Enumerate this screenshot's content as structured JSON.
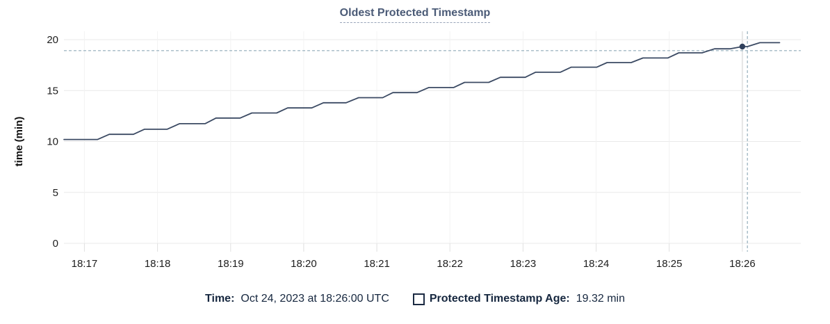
{
  "colors": {
    "line": "#3b4a63",
    "dot": "#30405c",
    "grid_h": "#e9e9e9",
    "grid_v": "#f2f2f2",
    "tick_mark": "#e0e0e0",
    "crosshair": "#a3b9c5",
    "hover_column": "#e6e6e6",
    "axis_text": "#1d1d1d",
    "title_text": "#4b5b77",
    "legend_text": "#16273f"
  },
  "chart_data": {
    "type": "line",
    "title": "Oldest Protected Timestamp",
    "xlabel": "",
    "ylabel": "time (min)",
    "ylim": [
      0,
      20
    ],
    "yticks": [
      0,
      5,
      10,
      15,
      20
    ],
    "xtick_labels": [
      "18:17",
      "18:18",
      "18:19",
      "18:20",
      "18:21",
      "18:22",
      "18:23",
      "18:24",
      "18:25",
      "18:26"
    ],
    "x_unit": "minutes after 18:17 UTC",
    "xlim": [
      -0.28,
      9.8
    ],
    "grid": true,
    "legend_position": "bottom",
    "series": [
      {
        "name": "Protected Timestamp Age",
        "points": [
          [
            -0.28,
            10.2
          ],
          [
            0.18,
            10.2
          ],
          [
            0.34,
            10.7
          ],
          [
            0.67,
            10.7
          ],
          [
            0.82,
            11.2
          ],
          [
            1.13,
            11.2
          ],
          [
            1.3,
            11.75
          ],
          [
            1.65,
            11.75
          ],
          [
            1.8,
            12.3
          ],
          [
            2.13,
            12.3
          ],
          [
            2.29,
            12.8
          ],
          [
            2.63,
            12.8
          ],
          [
            2.78,
            13.3
          ],
          [
            3.11,
            13.3
          ],
          [
            3.27,
            13.8
          ],
          [
            3.58,
            13.8
          ],
          [
            3.75,
            14.3
          ],
          [
            4.08,
            14.3
          ],
          [
            4.22,
            14.8
          ],
          [
            4.55,
            14.8
          ],
          [
            4.71,
            15.3
          ],
          [
            5.05,
            15.3
          ],
          [
            5.2,
            15.8
          ],
          [
            5.53,
            15.8
          ],
          [
            5.69,
            16.3
          ],
          [
            6.03,
            16.3
          ],
          [
            6.17,
            16.8
          ],
          [
            6.51,
            16.8
          ],
          [
            6.66,
            17.3
          ],
          [
            7.01,
            17.3
          ],
          [
            7.15,
            17.75
          ],
          [
            7.48,
            17.75
          ],
          [
            7.64,
            18.2
          ],
          [
            7.98,
            18.2
          ],
          [
            8.13,
            18.7
          ],
          [
            8.45,
            18.7
          ],
          [
            8.62,
            19.1
          ],
          [
            8.83,
            19.1
          ],
          [
            9.0,
            19.32
          ],
          [
            9.07,
            19.32
          ],
          [
            9.24,
            19.7
          ],
          [
            9.51,
            19.7
          ]
        ]
      }
    ],
    "hover_point": {
      "x": 9.0,
      "y": 19.32
    },
    "crosshair": {
      "x": 9.07,
      "y": 18.92
    }
  },
  "tooltip": {
    "time_label": "Time:",
    "time_value": "Oct 24, 2023 at 18:26:00 UTC",
    "series_label": "Protected Timestamp Age:",
    "series_value": "19.32 min"
  }
}
